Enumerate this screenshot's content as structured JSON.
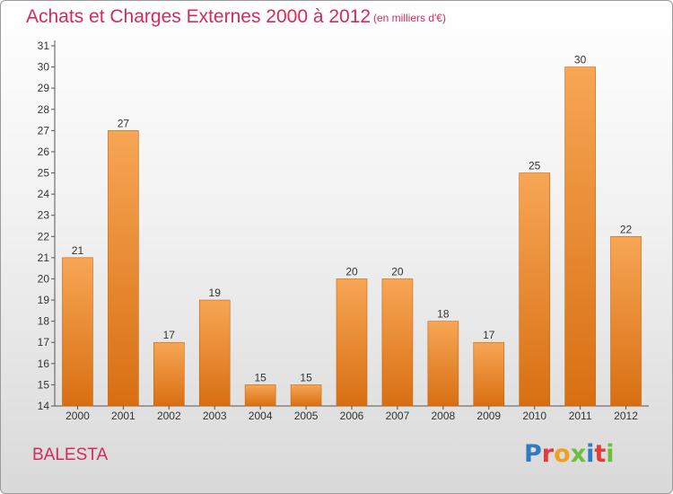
{
  "title": "Achats et Charges Externes 2000 à 2012",
  "unit": "(en milliers d'€)",
  "commune": "BALESTA",
  "logo": {
    "text": "Proxiti",
    "letters": [
      {
        "ch": "P",
        "color": "#2e7bc4"
      },
      {
        "ch": "r",
        "color": "#e23b3b"
      },
      {
        "ch": "o",
        "color": "#f0a020"
      },
      {
        "ch": "x",
        "color": "#6cbf3a"
      },
      {
        "ch": "i",
        "color": "#2e7bc4"
      },
      {
        "ch": "t",
        "color": "#e23b3b"
      },
      {
        "ch": "i",
        "color": "#6cbf3a"
      }
    ]
  },
  "colors": {
    "title": "#d42a5c",
    "bar_top": "#f7a655",
    "bar_bottom": "#d86f12",
    "bar_edge": "#c8640f"
  },
  "chart_data": {
    "type": "bar",
    "categories": [
      "2000",
      "2001",
      "2002",
      "2003",
      "2004",
      "2005",
      "2006",
      "2007",
      "2008",
      "2009",
      "2010",
      "2011",
      "2012"
    ],
    "values": [
      21,
      27,
      17,
      19,
      15,
      15,
      20,
      20,
      18,
      17,
      25,
      30,
      22
    ],
    "ylim": [
      14,
      31
    ],
    "yticks": [
      14,
      15,
      16,
      17,
      18,
      19,
      20,
      21,
      22,
      23,
      24,
      25,
      26,
      27,
      28,
      29,
      30,
      31
    ],
    "grid": false,
    "data_labels": true
  }
}
